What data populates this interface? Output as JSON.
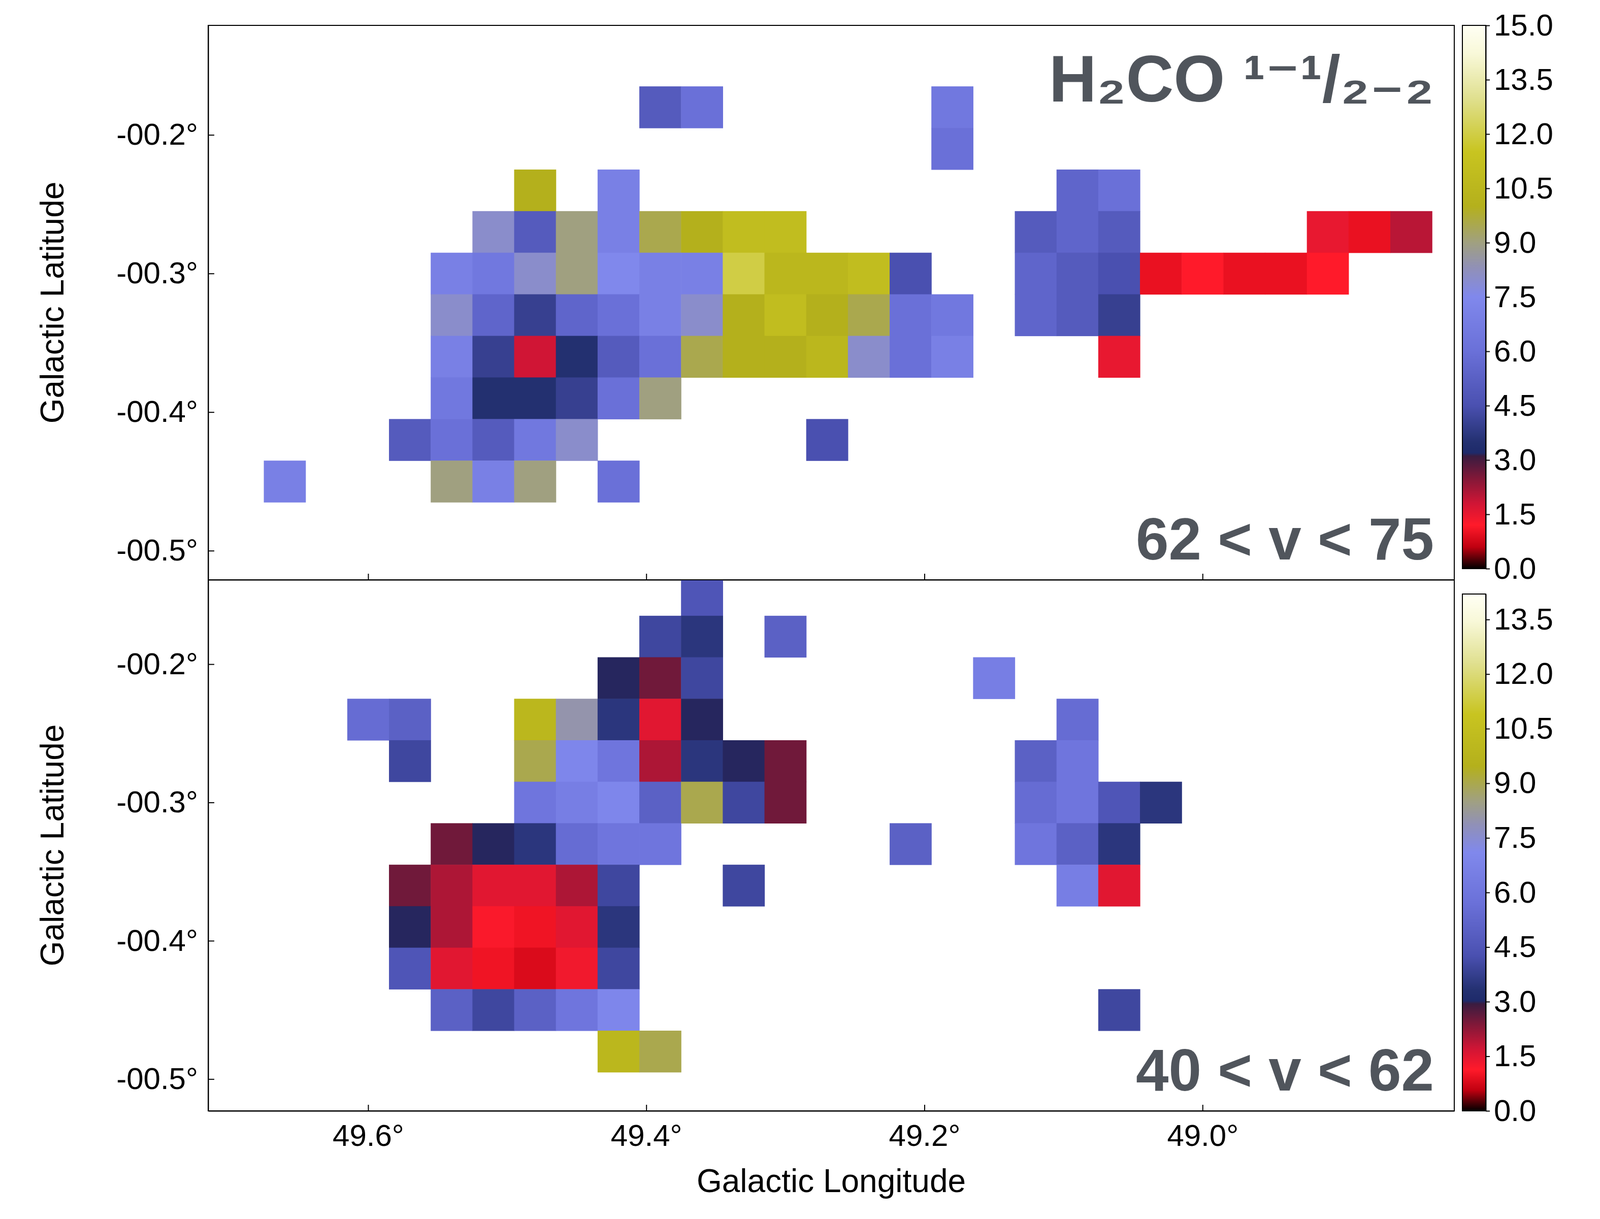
{
  "chart_data": [
    {
      "type": "heatmap",
      "title": "H₂CO ¹⁻¹/₂₋₂",
      "annotations": [
        "62 < v < 75"
      ],
      "ylabel": "Galactic Latitude",
      "tick_labels": "y",
      "xlim": [
        49.715,
        48.819
      ],
      "ylim": [
        -0.521,
        -0.121
      ],
      "xticks": [
        49.6,
        49.4,
        49.2,
        49.0
      ],
      "yticks": [
        {
          "value": -0.2,
          "label": "-00.2°"
        },
        {
          "value": -0.3,
          "label": "-00.3°"
        },
        {
          "value": -0.4,
          "label": "-00.4°"
        },
        {
          "value": -0.5,
          "label": "-00.5°"
        }
      ],
      "x": [
        49.69,
        49.66,
        49.63,
        49.6,
        49.57,
        49.54,
        49.51,
        49.48,
        49.45,
        49.42,
        49.39,
        49.36,
        49.33,
        49.3,
        49.27,
        49.24,
        49.21,
        49.18,
        49.15,
        49.12,
        49.09,
        49.06,
        49.03,
        49.0,
        48.97,
        48.94,
        48.91,
        48.88,
        48.85
      ],
      "y": [
        -0.15,
        -0.18,
        -0.21,
        -0.24,
        -0.27,
        -0.3,
        -0.33,
        -0.36,
        -0.39,
        -0.42,
        -0.45,
        -0.48,
        -0.51
      ],
      "values": [
        [
          null,
          null,
          null,
          null,
          null,
          null,
          null,
          null,
          null,
          null,
          null,
          null,
          null,
          null,
          null,
          null,
          null,
          null,
          null,
          null,
          null,
          null,
          null,
          null,
          null,
          null,
          null,
          null,
          null
        ],
        [
          null,
          null,
          null,
          null,
          null,
          null,
          null,
          null,
          null,
          null,
          5,
          6,
          null,
          null,
          null,
          null,
          null,
          6.5,
          null,
          null,
          null,
          null,
          null,
          null,
          null,
          null,
          null,
          null,
          null
        ],
        [
          null,
          null,
          null,
          null,
          null,
          null,
          null,
          null,
          null,
          null,
          null,
          null,
          null,
          null,
          null,
          null,
          null,
          6,
          null,
          null,
          null,
          null,
          null,
          null,
          null,
          null,
          null,
          null,
          null
        ],
        [
          null,
          null,
          null,
          null,
          null,
          null,
          null,
          10,
          null,
          7,
          null,
          null,
          null,
          null,
          null,
          null,
          null,
          null,
          null,
          null,
          5.5,
          6,
          null,
          null,
          null,
          null,
          null,
          null,
          null
        ],
        [
          null,
          null,
          null,
          null,
          null,
          null,
          8,
          5,
          9,
          7,
          9.5,
          10,
          11,
          11,
          null,
          null,
          null,
          null,
          null,
          5,
          5.5,
          5,
          null,
          null,
          null,
          null,
          1.5,
          1.0,
          2.0
        ],
        [
          null,
          null,
          null,
          null,
          null,
          7,
          6.5,
          8,
          9,
          7.5,
          7,
          7,
          12,
          10.5,
          10.5,
          11,
          4.5,
          null,
          null,
          5.5,
          5,
          4.5,
          1.0,
          1.2,
          1.0,
          1.0,
          1.2,
          null,
          null
        ],
        [
          null,
          null,
          null,
          null,
          null,
          8,
          5.5,
          4,
          5.5,
          6,
          7,
          8,
          10,
          11,
          10,
          9.5,
          6,
          6.5,
          null,
          5.5,
          5,
          4,
          null,
          null,
          null,
          null,
          null,
          null,
          null
        ],
        [
          null,
          null,
          null,
          null,
          null,
          7,
          4,
          1.8,
          3.5,
          5,
          6,
          9.5,
          10,
          10,
          10.5,
          8,
          6,
          7,
          null,
          null,
          null,
          1.5,
          null,
          null,
          null,
          null,
          null,
          null,
          null
        ],
        [
          null,
          null,
          null,
          null,
          null,
          6.5,
          3.5,
          3.5,
          4,
          6,
          9,
          null,
          null,
          null,
          null,
          null,
          null,
          null,
          null,
          null,
          null,
          null,
          null,
          null,
          null,
          null,
          null,
          null,
          null
        ],
        [
          null,
          null,
          null,
          null,
          5,
          6,
          5,
          6.5,
          8,
          null,
          null,
          null,
          null,
          null,
          4.5,
          null,
          null,
          null,
          null,
          null,
          null,
          null,
          null,
          null,
          null,
          null,
          null,
          null,
          null
        ],
        [
          null,
          7,
          null,
          null,
          null,
          9,
          7,
          9,
          null,
          6,
          null,
          null,
          null,
          null,
          null,
          null,
          null,
          null,
          null,
          null,
          null,
          null,
          null,
          null,
          null,
          null,
          null,
          null,
          null
        ],
        [
          null,
          null,
          null,
          null,
          null,
          null,
          null,
          null,
          null,
          null,
          null,
          null,
          null,
          null,
          null,
          null,
          null,
          null,
          null,
          null,
          null,
          null,
          null,
          null,
          null,
          null,
          null,
          null,
          null
        ],
        [
          null,
          null,
          null,
          null,
          null,
          null,
          null,
          null,
          null,
          null,
          null,
          null,
          null,
          null,
          null,
          null,
          null,
          null,
          null,
          null,
          null,
          null,
          null,
          null,
          null,
          null,
          null,
          null,
          null
        ]
      ],
      "colorbar": {
        "range": [
          0,
          15
        ],
        "ticks": [
          {
            "value": 0,
            "label": "0.0"
          },
          1.5,
          {
            "value": 3,
            "label": "3.0"
          },
          4.5,
          {
            "value": 6,
            "label": "6.0"
          },
          7.5,
          {
            "value": 9,
            "label": "9.0"
          },
          10.5,
          {
            "value": 12,
            "label": "12.0"
          },
          13.5,
          {
            "value": 15,
            "label": "15.0"
          }
        ]
      }
    },
    {
      "type": "heatmap",
      "annotations": [
        "40 < v < 62"
      ],
      "xlabel": "Galactic Longitude",
      "ylabel": "Galactic Latitude",
      "xlim": [
        49.715,
        48.819
      ],
      "ylim": [
        -0.523,
        -0.139
      ],
      "xticks": [
        {
          "value": 49.6,
          "label": "49.6°"
        },
        {
          "value": 49.4,
          "label": "49.4°"
        },
        {
          "value": 49.2,
          "label": "49.2°"
        },
        {
          "value": 49.0,
          "label": "49.0°"
        }
      ],
      "yticks": [
        {
          "value": -0.2,
          "label": "-00.2°"
        },
        {
          "value": -0.3,
          "label": "-00.3°"
        },
        {
          "value": -0.4,
          "label": "-00.4°"
        },
        {
          "value": -0.5,
          "label": "-00.5°"
        }
      ],
      "x": [
        49.69,
        49.66,
        49.63,
        49.6,
        49.57,
        49.54,
        49.51,
        49.48,
        49.45,
        49.42,
        49.39,
        49.36,
        49.33,
        49.3,
        49.27,
        49.24,
        49.21,
        49.18,
        49.15,
        49.12,
        49.09,
        49.06,
        49.03,
        49.0,
        48.97,
        48.94,
        48.91,
        48.88,
        48.85
      ],
      "y": [
        -0.15,
        -0.18,
        -0.21,
        -0.24,
        -0.27,
        -0.3,
        -0.33,
        -0.36,
        -0.39,
        -0.42,
        -0.45,
        -0.48,
        -0.51
      ],
      "values": [
        [
          null,
          null,
          null,
          null,
          null,
          null,
          null,
          null,
          null,
          null,
          null,
          4.5,
          null,
          null,
          null,
          null,
          null,
          null,
          null,
          null,
          null,
          null,
          null,
          null,
          null,
          null,
          null,
          null,
          null
        ],
        [
          null,
          null,
          null,
          null,
          null,
          null,
          null,
          null,
          null,
          null,
          4,
          3.5,
          null,
          5,
          null,
          null,
          null,
          null,
          null,
          null,
          null,
          null,
          null,
          null,
          null,
          null,
          null,
          null,
          null
        ],
        [
          null,
          null,
          null,
          null,
          null,
          null,
          null,
          null,
          null,
          3,
          2.5,
          4,
          null,
          null,
          null,
          null,
          null,
          null,
          6.5,
          null,
          null,
          null,
          null,
          null,
          null,
          null,
          null,
          null,
          null
        ],
        [
          null,
          null,
          null,
          5.5,
          5,
          null,
          null,
          10,
          8,
          3.5,
          1.5,
          3,
          null,
          null,
          null,
          null,
          null,
          null,
          null,
          null,
          5.5,
          null,
          null,
          null,
          null,
          null,
          null,
          null,
          null
        ],
        [
          null,
          null,
          null,
          null,
          4,
          null,
          null,
          9,
          7,
          6,
          2.0,
          3.5,
          3,
          2.5,
          null,
          null,
          null,
          null,
          null,
          5,
          6,
          null,
          null,
          null,
          null,
          null,
          null,
          null,
          null
        ],
        [
          null,
          null,
          null,
          null,
          null,
          null,
          null,
          6,
          6.5,
          7,
          5,
          9,
          4,
          2.5,
          null,
          null,
          null,
          null,
          null,
          5.5,
          6,
          4.5,
          3.5,
          null,
          null,
          null,
          null,
          null,
          null
        ],
        [
          null,
          null,
          null,
          null,
          null,
          2.5,
          3,
          3.5,
          5.5,
          6,
          6,
          null,
          null,
          null,
          null,
          null,
          5,
          null,
          null,
          6,
          5,
          3.5,
          null,
          null,
          null,
          null,
          null,
          null,
          null
        ],
        [
          null,
          null,
          null,
          null,
          2.5,
          2,
          1.5,
          1.5,
          2,
          4,
          null,
          null,
          4,
          null,
          null,
          null,
          null,
          null,
          null,
          null,
          6.5,
          1.5,
          null,
          null,
          null,
          null,
          null,
          null,
          null
        ],
        [
          null,
          null,
          null,
          null,
          3,
          2.0,
          1.2,
          1.0,
          1.5,
          3.5,
          null,
          null,
          null,
          null,
          null,
          null,
          null,
          null,
          null,
          null,
          null,
          null,
          null,
          null,
          null,
          null,
          null,
          null,
          null
        ],
        [
          null,
          null,
          null,
          null,
          4.5,
          1.5,
          1.0,
          0.8,
          1.3,
          4.0,
          null,
          null,
          null,
          null,
          null,
          null,
          null,
          null,
          null,
          null,
          null,
          null,
          null,
          null,
          null,
          null,
          null,
          null,
          null
        ],
        [
          null,
          null,
          null,
          null,
          null,
          5,
          4,
          5,
          6,
          7,
          null,
          null,
          null,
          null,
          null,
          null,
          null,
          null,
          null,
          null,
          null,
          4,
          null,
          null,
          null,
          null,
          null,
          null,
          null
        ],
        [
          null,
          null,
          null,
          null,
          null,
          null,
          null,
          null,
          null,
          10,
          9,
          null,
          null,
          null,
          null,
          null,
          null,
          null,
          null,
          null,
          null,
          null,
          null,
          null,
          null,
          null,
          null,
          null,
          null
        ],
        [
          null,
          null,
          null,
          null,
          null,
          null,
          null,
          null,
          null,
          null,
          null,
          null,
          null,
          null,
          null,
          null,
          null,
          null,
          null,
          null,
          null,
          null,
          null,
          null,
          null,
          null,
          null,
          null,
          null
        ]
      ],
      "colorbar": {
        "range": [
          0,
          14.2
        ],
        "ticks": [
          {
            "value": 0,
            "label": "0.0"
          },
          1.5,
          {
            "value": 3,
            "label": "3.0"
          },
          4.5,
          {
            "value": 6,
            "label": "6.0"
          },
          7.5,
          {
            "value": 9,
            "label": "9.0"
          },
          10.5,
          {
            "value": 12,
            "label": "12.0"
          },
          13.5
        ]
      }
    }
  ]
}
